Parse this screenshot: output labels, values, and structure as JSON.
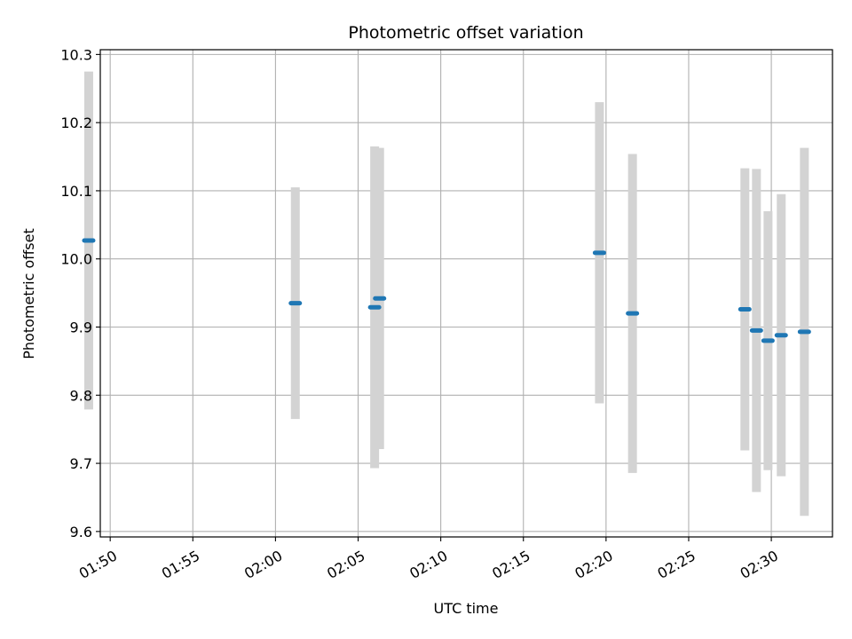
{
  "chart_data": {
    "type": "scatter",
    "title": "Photometric offset variation",
    "xlabel": "UTC time",
    "ylabel": "Photometric offset",
    "x_ticks": [
      "01:50",
      "01:55",
      "02:00",
      "02:05",
      "02:10",
      "02:15",
      "02:20",
      "02:25",
      "02:30"
    ],
    "y_ticks": [
      "9.6",
      "9.7",
      "9.8",
      "9.9",
      "10.0",
      "10.1",
      "10.2",
      "10.3"
    ],
    "xlim": [
      "01:49.4",
      "02:33.7"
    ],
    "ylim": [
      9.592,
      10.307
    ],
    "grid": true,
    "colors": {
      "point": "#1f77b4",
      "errorbar": "#d3d3d3",
      "grid": "#b0b0b0"
    },
    "points": [
      {
        "x": "01:48.7",
        "y": 10.027,
        "err": 0.248
      },
      {
        "x": "02:01.2",
        "y": 9.935,
        "err": 0.17
      },
      {
        "x": "02:06.0",
        "y": 9.929,
        "err": 0.236
      },
      {
        "x": "02:06.3",
        "y": 9.942,
        "err": 0.221
      },
      {
        "x": "02:19.6",
        "y": 10.009,
        "err": 0.221
      },
      {
        "x": "02:21.6",
        "y": 9.92,
        "err": 0.234
      },
      {
        "x": "02:28.4",
        "y": 9.926,
        "err": 0.207
      },
      {
        "x": "02:29.1",
        "y": 9.895,
        "err": 0.237
      },
      {
        "x": "02:29.8",
        "y": 9.88,
        "err": 0.19
      },
      {
        "x": "02:30.6",
        "y": 9.888,
        "err": 0.207
      },
      {
        "x": "02:32.0",
        "y": 9.893,
        "err": 0.27
      }
    ]
  }
}
